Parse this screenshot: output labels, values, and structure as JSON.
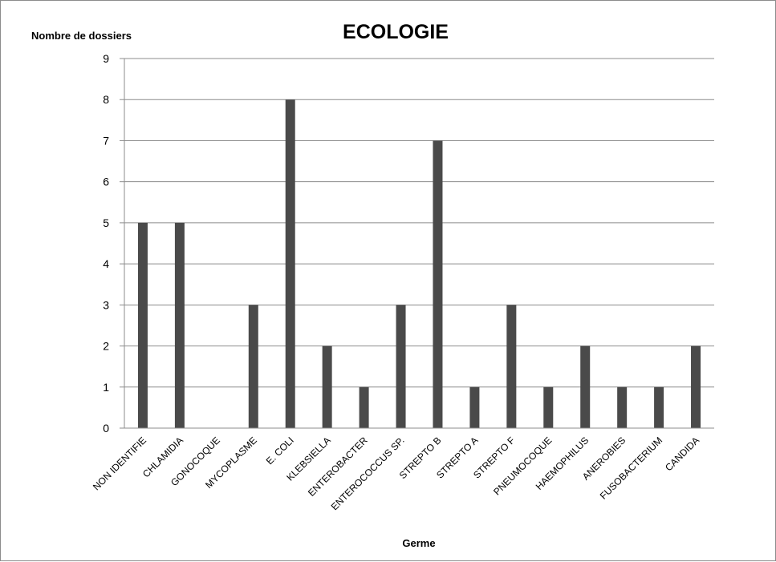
{
  "chart_data": {
    "type": "bar",
    "title": "ECOLOGIE",
    "ylabel": "Nombre de dossiers",
    "xlabel": "Germe",
    "ylim": [
      0,
      9
    ],
    "yticks": [
      0,
      1,
      2,
      3,
      4,
      5,
      6,
      7,
      8,
      9
    ],
    "grid": true,
    "legend": "none",
    "bar_color": "#4a4a4a",
    "categories": [
      "NON IDENTIFIE",
      "CHLAMIDIA",
      "GONOCOQUE",
      "MYCOPLASME",
      "E. COLI",
      "KLEBSIELLA",
      "ENTEROBACTER",
      "ENTEROCOCCUS SP.",
      "STREPTO B",
      "STREPTO A",
      "STREPTO F",
      "PNEUMOCOQUE",
      "HAEMOPHILUS",
      "ANEROBIES",
      "FUSOBACTERIUM",
      "CANDIDA"
    ],
    "values": [
      5,
      5,
      0,
      3,
      8,
      2,
      1,
      3,
      7,
      1,
      3,
      1,
      2,
      1,
      1,
      2
    ]
  }
}
